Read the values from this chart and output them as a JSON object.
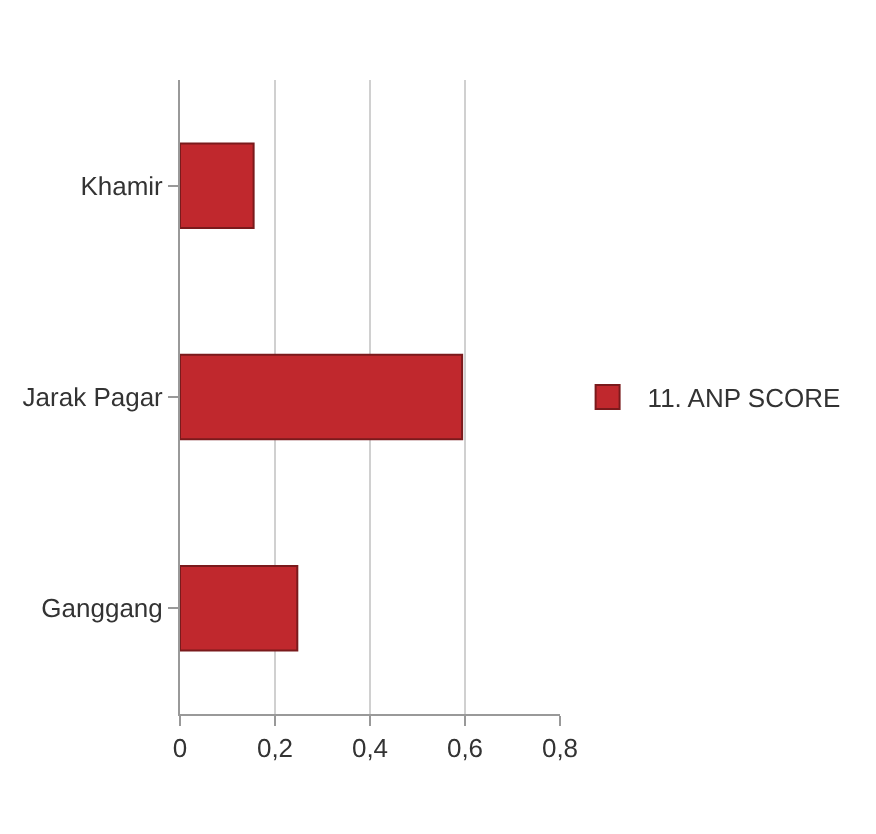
{
  "chart_data": {
    "type": "bar",
    "orientation": "horizontal",
    "categories": [
      "Khamir",
      "Jarak Pagar",
      "Ganggang"
    ],
    "series": [
      {
        "name": "11. ANP SCORE",
        "color": "#c0282d",
        "values": [
          0.155,
          0.594,
          0.247
        ]
      }
    ],
    "xlim": [
      0,
      0.8
    ],
    "xticks": [
      {
        "value": 0,
        "label": "0"
      },
      {
        "value": 0.2,
        "label": "0,2"
      },
      {
        "value": 0.4,
        "label": "0,4"
      },
      {
        "value": 0.6,
        "label": "0,6"
      },
      {
        "value": 0.8,
        "label": "0,8"
      }
    ],
    "grid": "x",
    "legend": "right"
  }
}
